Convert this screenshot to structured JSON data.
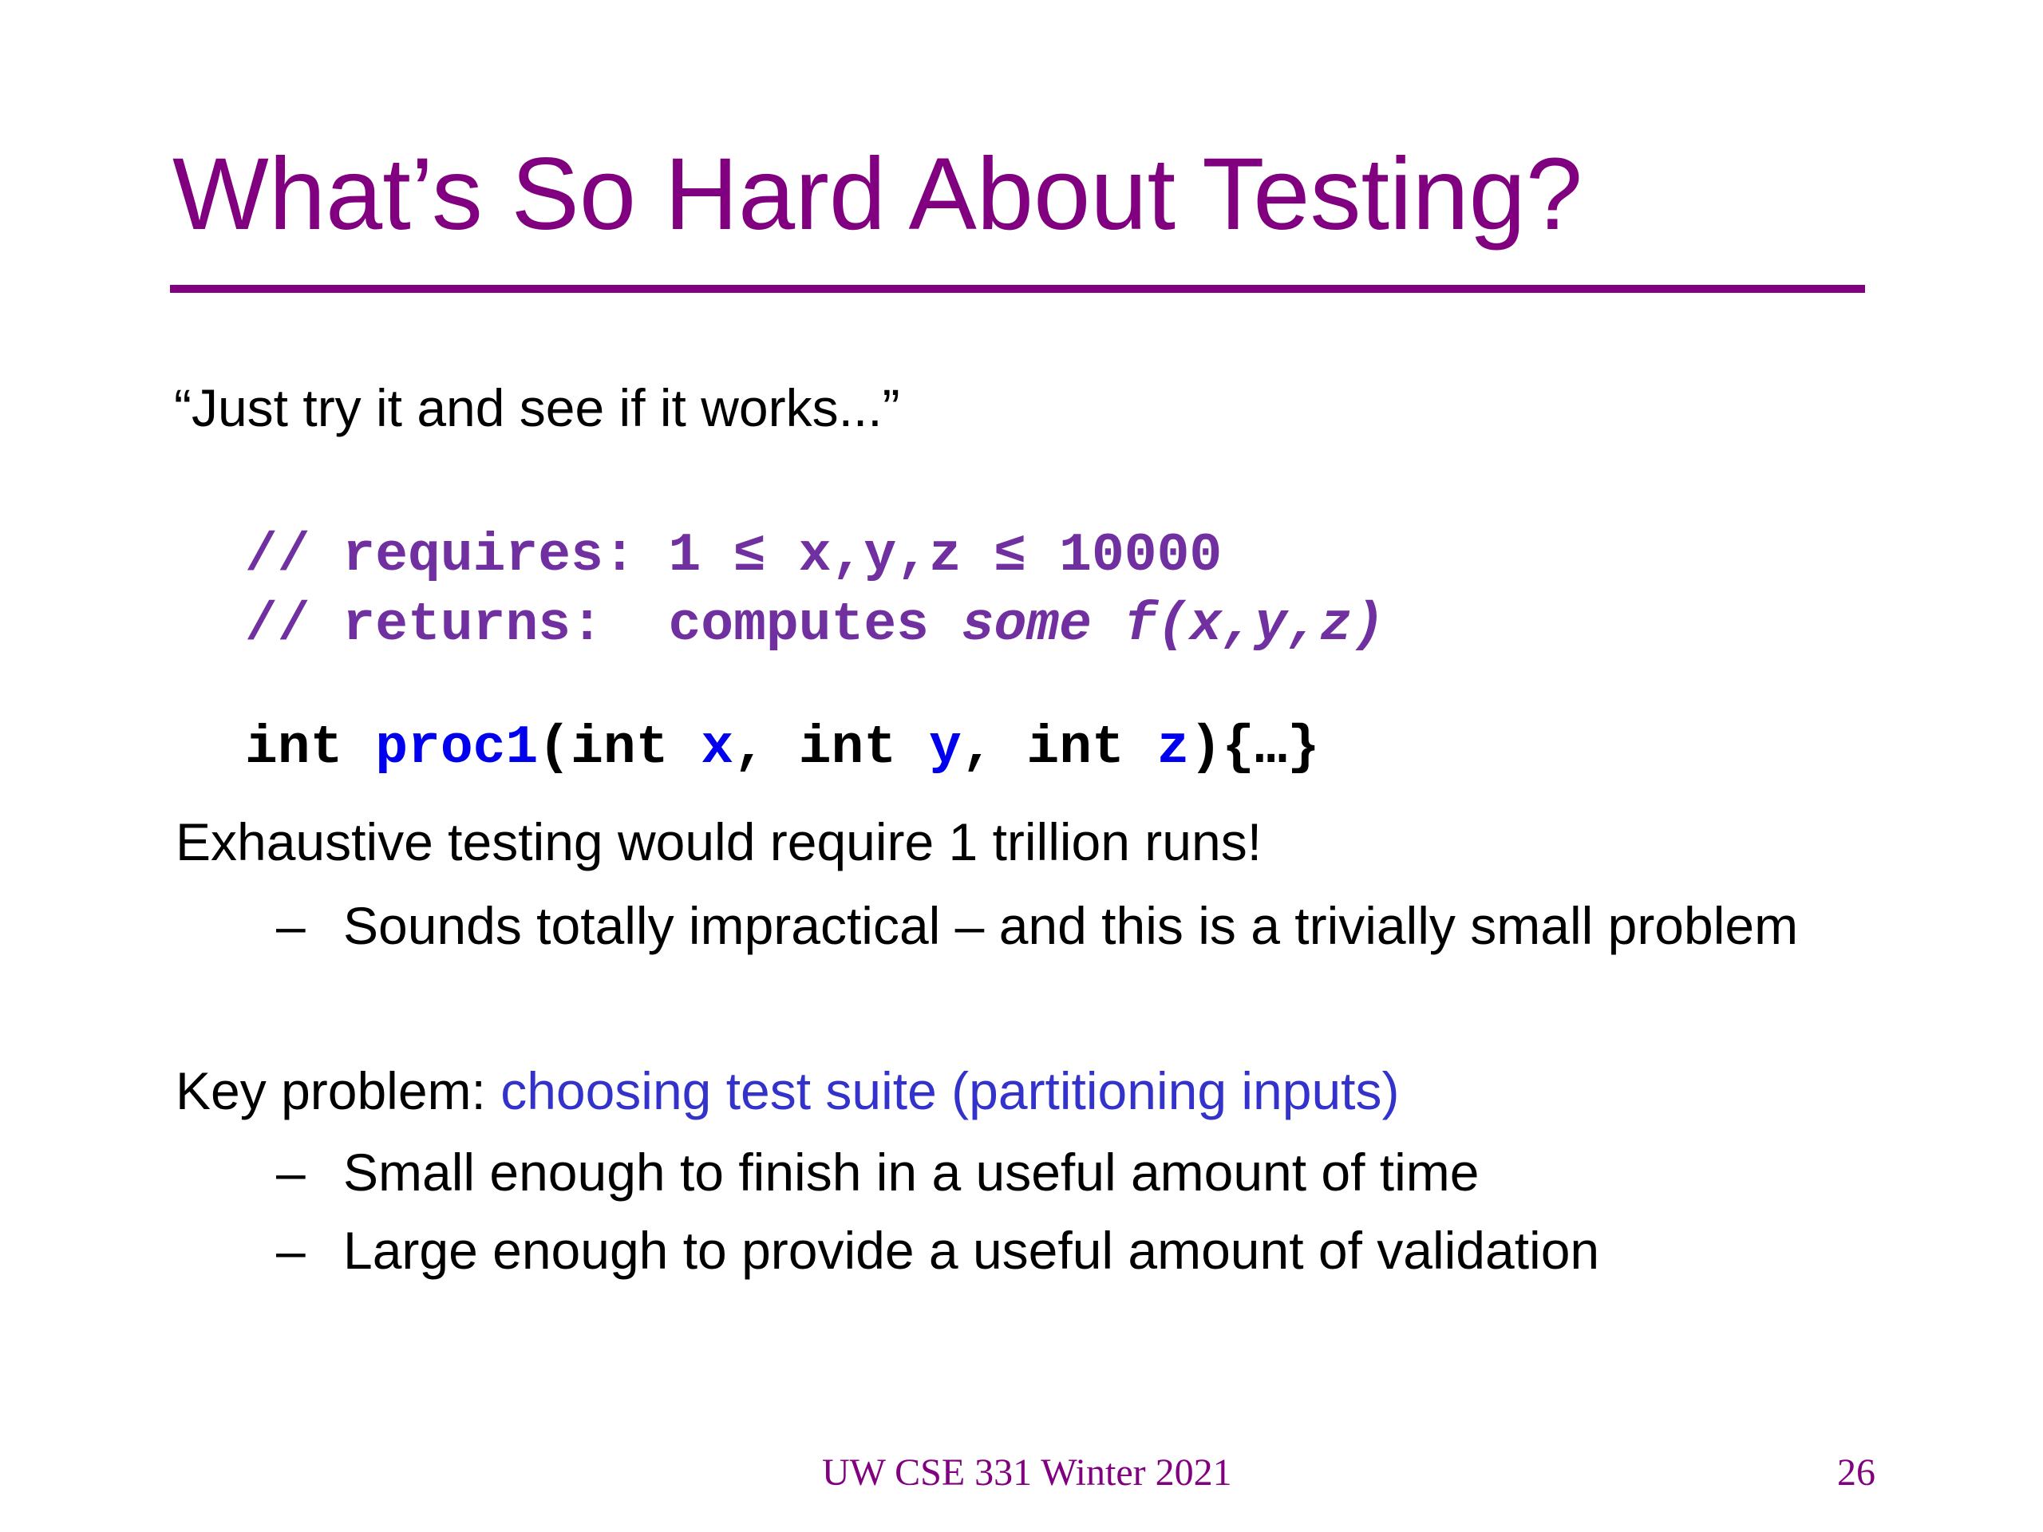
{
  "slide": {
    "title": "What’s So Hard About Testing?",
    "quote": "“Just try it and see if it works...”",
    "code": {
      "line1": "// requires: 1 ≤ x,y,z ≤ 10000",
      "line2_prefix": "// returns:  computes ",
      "line2_italic": "some f(x,y,z)",
      "line3": [
        {
          "text": "int ",
          "style": "kw"
        },
        {
          "text": "proc1",
          "style": "bl"
        },
        {
          "text": "(int ",
          "style": "kw"
        },
        {
          "text": "x",
          "style": "bl"
        },
        {
          "text": ", int ",
          "style": "kw"
        },
        {
          "text": "y",
          "style": "bl"
        },
        {
          "text": ", int ",
          "style": "kw"
        },
        {
          "text": "z",
          "style": "bl"
        },
        {
          "text": "){…}",
          "style": "kw"
        }
      ]
    },
    "point1": "Exhaustive testing would require 1 trillion runs!",
    "point1_sub": [
      "Sounds totally impractical – and this is a trivially small problem"
    ],
    "point2_prefix": "Key problem: ",
    "point2_highlight": "choosing test suite (partitioning inputs)",
    "point2_sub": [
      "Small enough to finish in a useful amount of time",
      "Large enough to provide a useful amount of validation"
    ],
    "dash": "–",
    "footer": "UW CSE 331 Winter 2021",
    "page_number": "26"
  },
  "colors": {
    "title": "#800080",
    "comment": "#7030A0",
    "identifier": "#0000EE",
    "highlight": "#3333CC"
  }
}
